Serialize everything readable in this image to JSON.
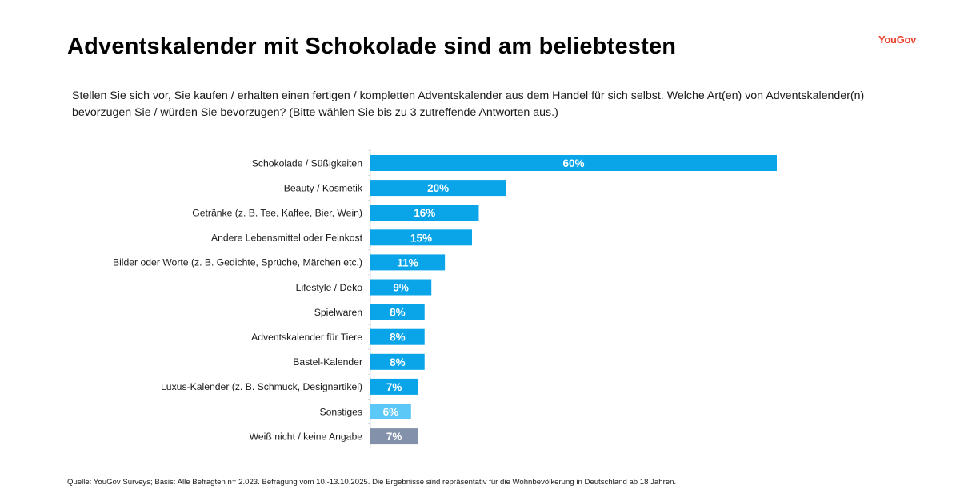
{
  "header": {
    "title": "Adventskalender mit Schokolade sind am beliebtesten",
    "logo": "YouGov"
  },
  "question": "Stellen Sie sich vor, Sie kaufen / erhalten einen fertigen / kompletten Adventskalender aus dem Handel für sich selbst. Welche Art(en) von Adventskalender(n) bevorzugen Sie / würden Sie bevorzugen? (Bitte wählen Sie bis zu 3 zutreffende Antworten aus.)",
  "footer": "Quelle: YouGov Surveys; Basis: Alle Befragten n= 2.023. Befragung vom 10.-13.10.2025. Die Ergebnisse sind repräsentativ für die Wohnbevölkerung in Deutschland ab 18 Jahren.",
  "colors": {
    "primary_bar": "#0aa5e9",
    "other_bar": "#5cc8f7",
    "dont_know_bar": "#8491aa",
    "logo": "#e8412c"
  },
  "chart_data": {
    "type": "bar",
    "orientation": "horizontal",
    "title": "Adventskalender mit Schokolade sind am beliebtesten",
    "xlabel": "",
    "ylabel": "",
    "xlim": [
      0,
      60
    ],
    "grid": false,
    "unit": "%",
    "categories": [
      "Schokolade / Süßigkeiten",
      "Beauty / Kosmetik",
      "Getränke (z. B. Tee, Kaffee, Bier, Wein)",
      "Andere Lebensmittel oder Feinkost",
      "Bilder oder Worte (z. B. Gedichte, Sprüche, Märchen etc.)",
      "Lifestyle / Deko",
      "Spielwaren",
      "Adventskalender für Tiere",
      "Bastel-Kalender",
      "Luxus-Kalender (z. B. Schmuck, Designartikel)",
      "Sonstiges",
      "Weiß nicht / keine Angabe"
    ],
    "values": [
      60,
      20,
      16,
      15,
      11,
      9,
      8,
      8,
      8,
      7,
      6,
      7
    ],
    "value_labels": [
      "60%",
      "20%",
      "16%",
      "15%",
      "11%",
      "9%",
      "8%",
      "8%",
      "8%",
      "7%",
      "6%",
      "7%"
    ],
    "bar_color_keys": [
      "primary_bar",
      "primary_bar",
      "primary_bar",
      "primary_bar",
      "primary_bar",
      "primary_bar",
      "primary_bar",
      "primary_bar",
      "primary_bar",
      "primary_bar",
      "other_bar",
      "dont_know_bar"
    ]
  }
}
